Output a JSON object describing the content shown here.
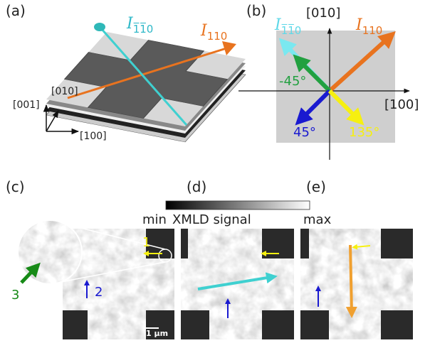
{
  "panels": {
    "a": {
      "label": "(a)",
      "current_labels": [
        {
          "symbol": "I",
          "subscript": "1̅1̅0"
        },
        {
          "symbol": "I",
          "subscript": "110"
        }
      ],
      "axes": [
        "[001]",
        "[010]",
        "[100]"
      ]
    },
    "b": {
      "label": "(b)",
      "current_labels": [
        {
          "symbol": "I",
          "subscript": "1̅1̅0"
        },
        {
          "symbol": "I",
          "subscript": "110"
        }
      ],
      "axes": [
        "[010]",
        "[100]"
      ],
      "angles": [
        "-45°",
        "45°",
        "135°"
      ]
    },
    "c": {
      "label": "(c)",
      "markers": [
        "1",
        "2",
        "3"
      ],
      "scale_bar": "1 µm"
    },
    "d": {
      "label": "(d)"
    },
    "e": {
      "label": "(e)"
    }
  },
  "colorbar": {
    "min": "min",
    "title": "XMLD signal",
    "max": "max"
  }
}
